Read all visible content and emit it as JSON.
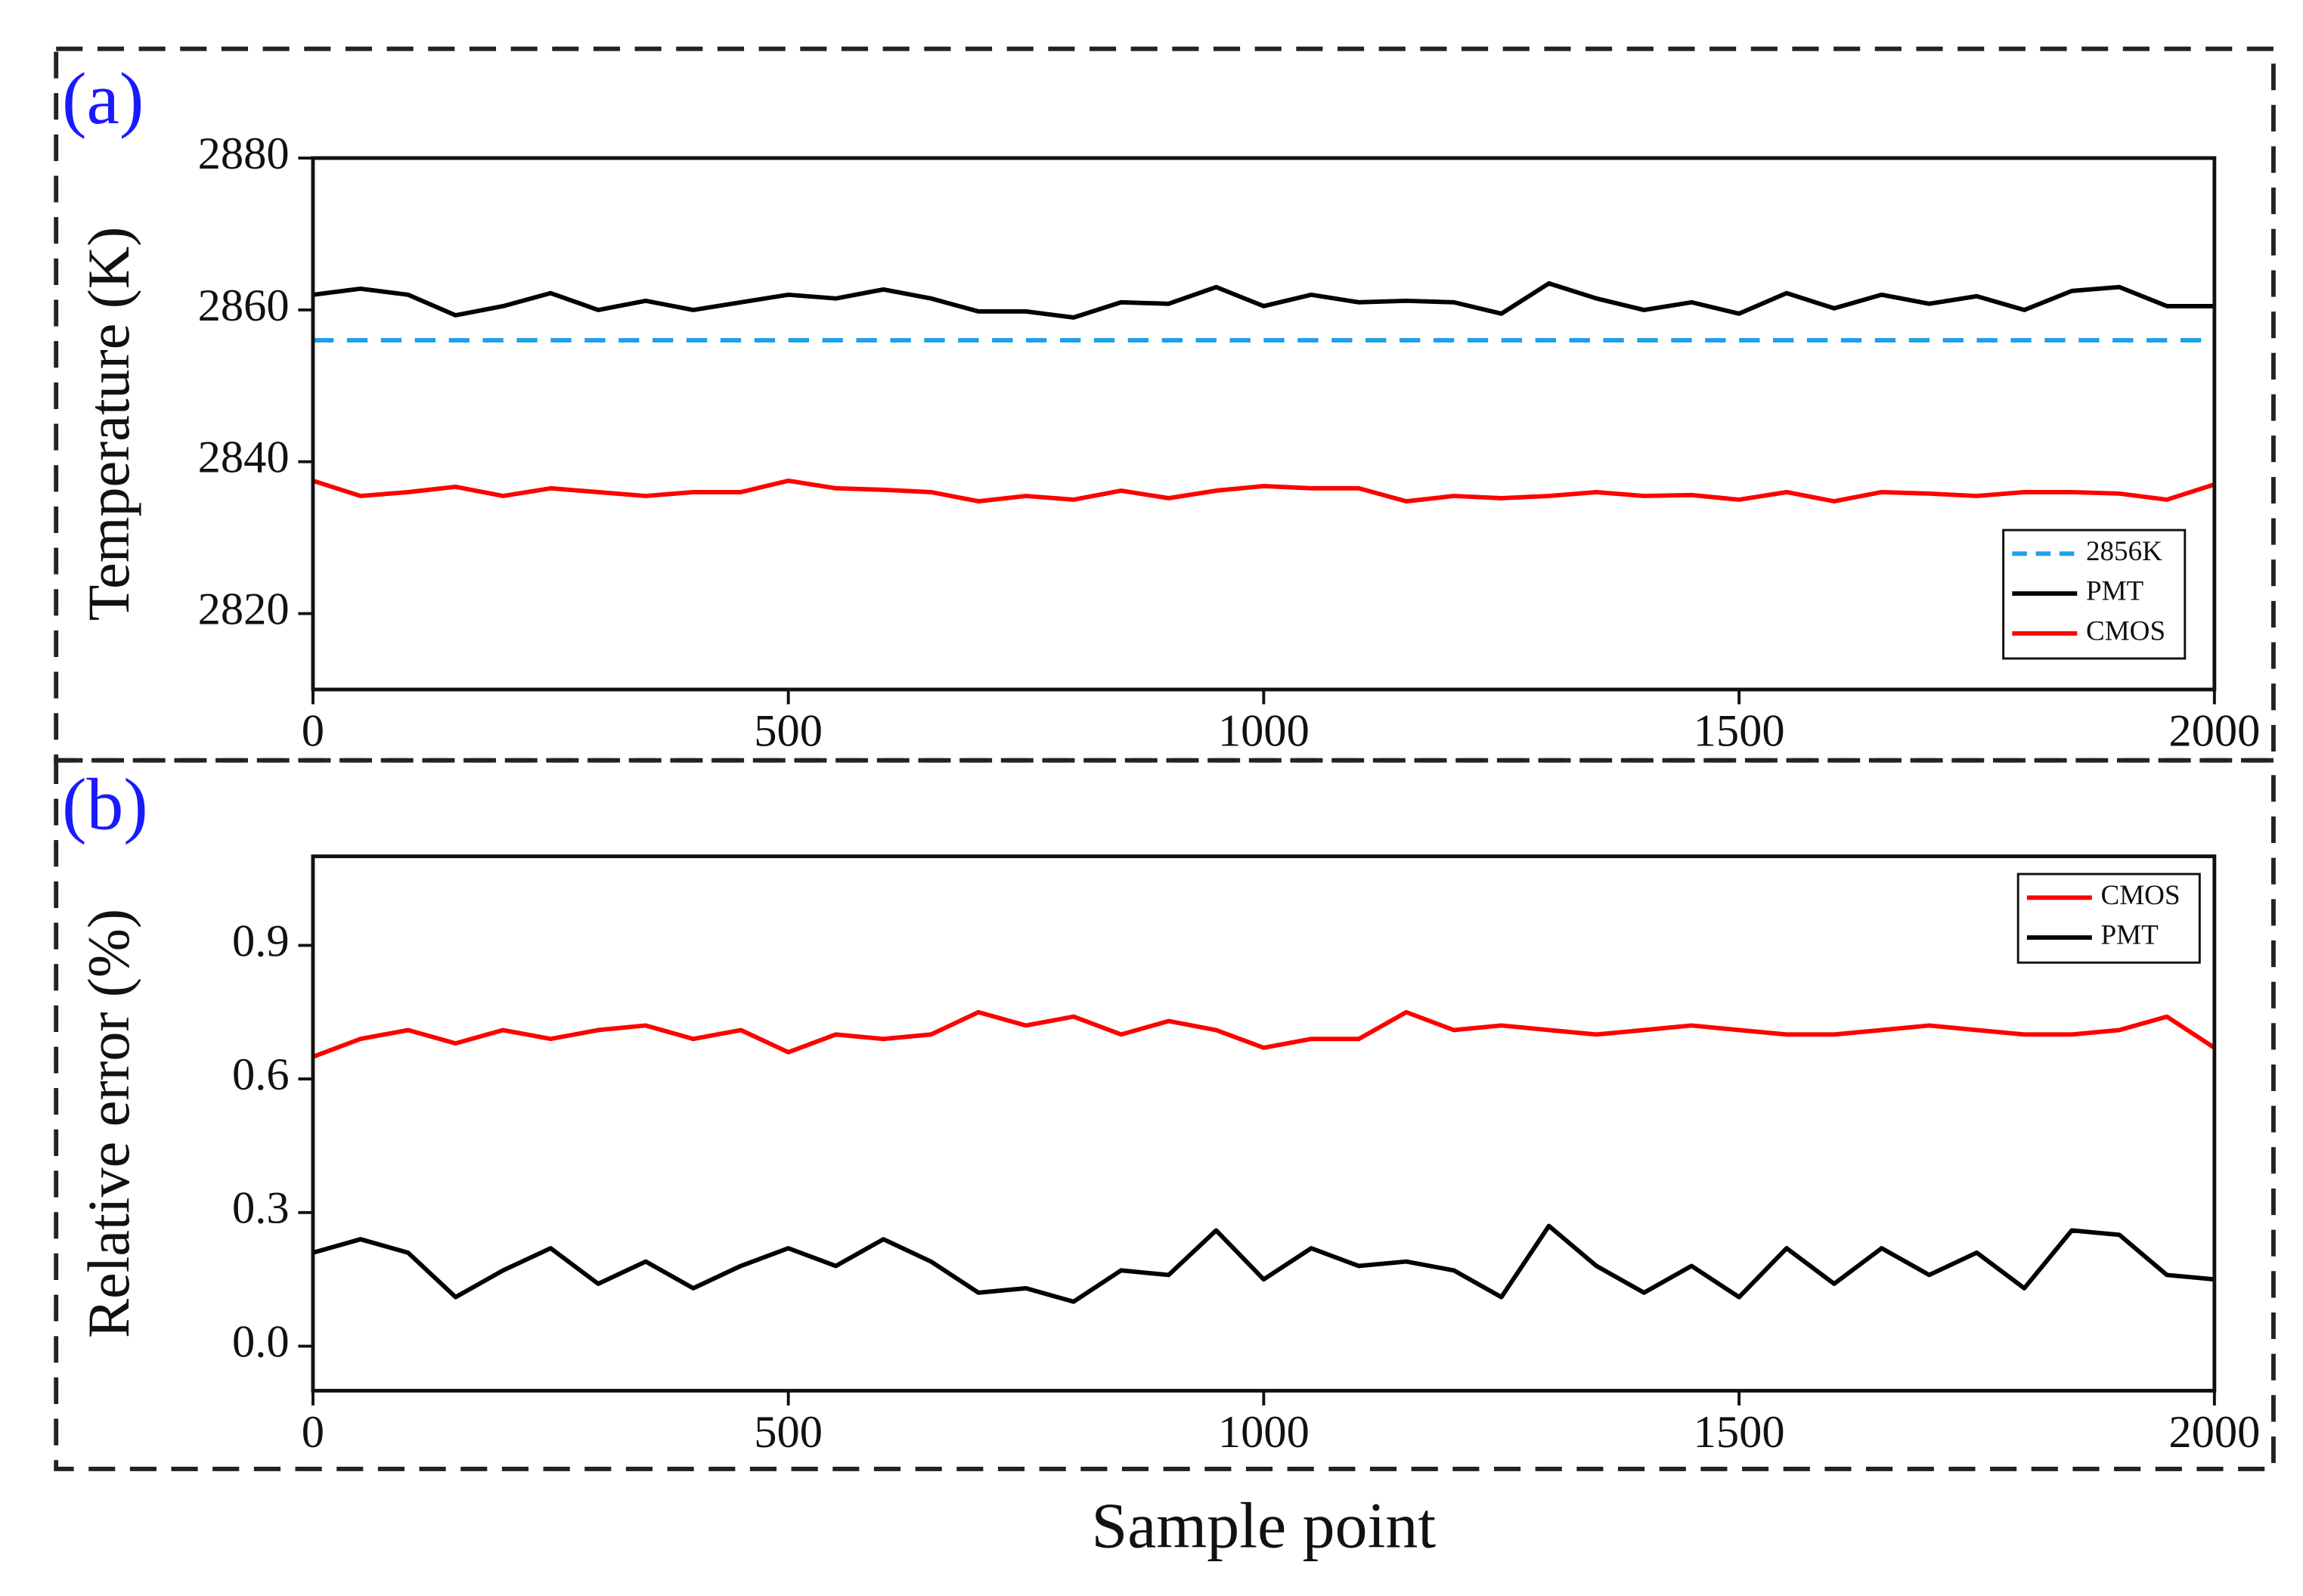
{
  "x_label": "Sample point",
  "chart_data": [
    {
      "type": "line",
      "panel_label": "(a)",
      "y_label": "Temperature (K)",
      "x": [
        0,
        50,
        100,
        150,
        200,
        250,
        300,
        350,
        400,
        450,
        500,
        550,
        600,
        650,
        700,
        750,
        800,
        850,
        900,
        950,
        1000,
        1050,
        1100,
        1150,
        1200,
        1250,
        1300,
        1350,
        1400,
        1450,
        1500,
        1550,
        1600,
        1650,
        1700,
        1750,
        1800,
        1850,
        1900,
        1950,
        2000
      ],
      "xlim": [
        0,
        2000
      ],
      "xticks": [
        0,
        500,
        1000,
        1500,
        2000
      ],
      "ylim": [
        2810,
        2880
      ],
      "yticks": [
        2820,
        2840,
        2860,
        2880
      ],
      "legend": "lower right",
      "series": [
        {
          "name": "2856K",
          "color": "#1ea0e8",
          "linestyle": "dashed",
          "x": [
            0,
            2000
          ],
          "values": [
            2856,
            2856
          ]
        },
        {
          "name": "PMT",
          "color": "#000000",
          "linestyle": "solid",
          "values": [
            2862,
            2862.8,
            2862,
            2859.3,
            2860.5,
            2862.2,
            2860,
            2861.2,
            2860,
            2861,
            2862,
            2861.5,
            2862.7,
            2861.5,
            2859.8,
            2859.8,
            2859,
            2861,
            2860.8,
            2863,
            2860.5,
            2862,
            2861,
            2861.2,
            2861,
            2859.5,
            2863.5,
            2861.5,
            2860,
            2861,
            2859.5,
            2862.2,
            2860.2,
            2862,
            2860.8,
            2861.8,
            2860,
            2862.5,
            2863,
            2860.5,
            2860.5
          ]
        },
        {
          "name": "CMOS",
          "color": "#ff0000",
          "linestyle": "solid",
          "values": [
            2837.5,
            2835.5,
            2836,
            2836.7,
            2835.5,
            2836.5,
            2836,
            2835.5,
            2836,
            2836,
            2837.5,
            2836.5,
            2836.3,
            2836,
            2834.8,
            2835.5,
            2835,
            2836.2,
            2835.2,
            2836.2,
            2836.8,
            2836.5,
            2836.5,
            2834.8,
            2835.5,
            2835.2,
            2835.5,
            2836,
            2835.5,
            2835.6,
            2835,
            2836,
            2834.8,
            2836,
            2835.8,
            2835.5,
            2836,
            2836,
            2835.8,
            2835,
            2837
          ]
        }
      ]
    },
    {
      "type": "line",
      "panel_label": "(b)",
      "y_label": "Relative error (%)",
      "x": [
        0,
        50,
        100,
        150,
        200,
        250,
        300,
        350,
        400,
        450,
        500,
        550,
        600,
        650,
        700,
        750,
        800,
        850,
        900,
        950,
        1000,
        1050,
        1100,
        1150,
        1200,
        1250,
        1300,
        1350,
        1400,
        1450,
        1500,
        1550,
        1600,
        1650,
        1700,
        1750,
        1800,
        1850,
        1900,
        1950,
        2000
      ],
      "xlim": [
        0,
        2000
      ],
      "xticks": [
        0,
        500,
        1000,
        1500,
        2000
      ],
      "ylim": [
        -0.1,
        1.1
      ],
      "yticks": [
        {
          "value": 0,
          "label": "0.0"
        },
        0.3,
        0.6,
        0.9
      ],
      "legend": "upper right",
      "series": [
        {
          "name": "CMOS",
          "color": "#ff0000",
          "linestyle": "solid",
          "values": [
            0.65,
            0.69,
            0.71,
            0.68,
            0.71,
            0.69,
            0.71,
            0.72,
            0.69,
            0.71,
            0.66,
            0.7,
            0.69,
            0.7,
            0.75,
            0.72,
            0.74,
            0.7,
            0.73,
            0.71,
            0.67,
            0.69,
            0.69,
            0.75,
            0.71,
            0.72,
            0.71,
            0.7,
            0.71,
            0.72,
            0.71,
            0.7,
            0.7,
            0.71,
            0.72,
            0.71,
            0.7,
            0.7,
            0.71,
            0.74,
            0.67
          ]
        },
        {
          "name": "PMT",
          "color": "#000000",
          "linestyle": "solid",
          "values": [
            0.21,
            0.24,
            0.21,
            0.11,
            0.17,
            0.22,
            0.14,
            0.19,
            0.13,
            0.18,
            0.22,
            0.18,
            0.24,
            0.19,
            0.12,
            0.13,
            0.1,
            0.17,
            0.16,
            0.26,
            0.15,
            0.22,
            0.18,
            0.19,
            0.17,
            0.11,
            0.27,
            0.18,
            0.12,
            0.18,
            0.11,
            0.22,
            0.14,
            0.22,
            0.16,
            0.21,
            0.13,
            0.26,
            0.25,
            0.16,
            0.15
          ]
        }
      ]
    }
  ]
}
